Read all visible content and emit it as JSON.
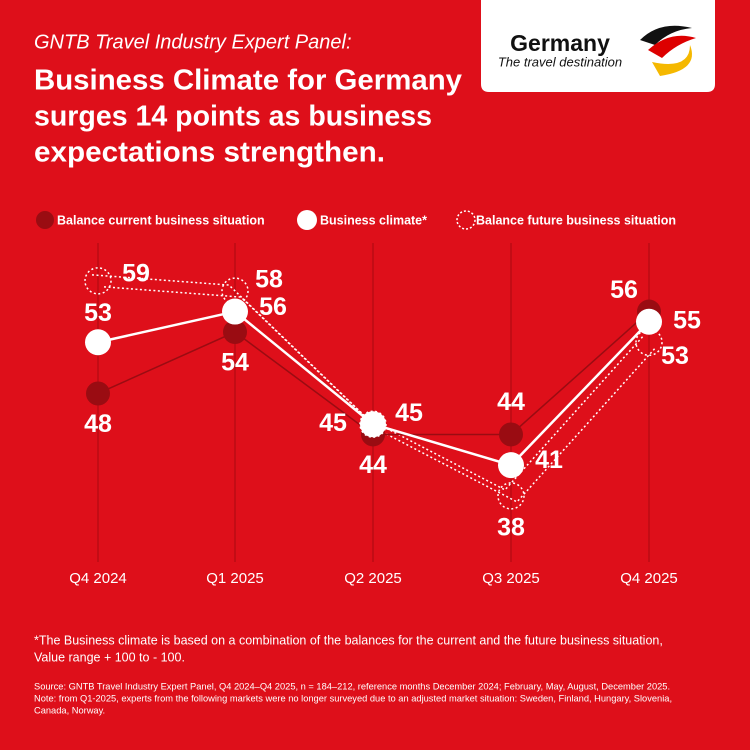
{
  "kicker": "GNTB Travel Industry Expert Panel:",
  "logo": {
    "name": "Germany",
    "tagline": "The travel destination"
  },
  "chart_data": {
    "type": "line",
    "title": [
      "Business Climate for Germany",
      "surges 14 points as business",
      "expectations strengthen."
    ],
    "categories": [
      "Q4 2024",
      "Q1 2025",
      "Q2 2025",
      "Q3 2025",
      "Q4 2025"
    ],
    "series": [
      {
        "name": "Balance current business situation",
        "color": "#9a0c12",
        "values": [
          48,
          54,
          44,
          44,
          56
        ]
      },
      {
        "name": "Business climate*",
        "color": "#ffffff",
        "values": [
          53,
          56,
          45,
          41,
          55
        ]
      },
      {
        "name": "Balance future business situation",
        "color": "#ffffff",
        "values": [
          59,
          58,
          45,
          38,
          53
        ]
      }
    ],
    "footnote": [
      "*The Business climate is based on a combination of the balances for the current and the future business situation,",
      "Value range + 100 to - 100."
    ],
    "source": [
      "Source: GNTB Travel Industry Expert Panel, Q4 2024–Q4 2025, n = 184–212, reference months December 2024; February, May, August, December 2025.",
      "Note: from Q1-2025, experts from the following markets were no longer surveyed due to an adjusted market situation: Sweden, Finland, Hungary, Slovenia,",
      "Canada, Norway."
    ]
  }
}
